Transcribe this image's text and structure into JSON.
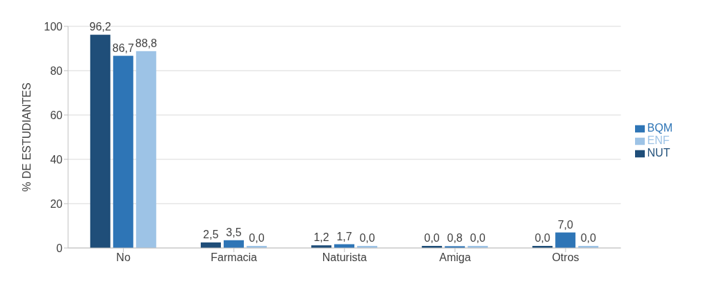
{
  "chart_data": {
    "type": "bar",
    "ylabel": "% DE ESTUDIANTES",
    "categories": [
      "No",
      "Farmacia",
      "Naturista",
      "Amiga",
      "Otros"
    ],
    "series": [
      {
        "name": "NUT",
        "color": "#1f4e79",
        "values": [
          96.2,
          2.5,
          1.2,
          0.0,
          0.0
        ],
        "value_labels": [
          "96,2",
          "2,5",
          "1,2",
          "0,0",
          "0,0"
        ]
      },
      {
        "name": "BQM",
        "color": "#2e75b6",
        "values": [
          86.7,
          3.5,
          1.7,
          0.8,
          7.0
        ],
        "value_labels": [
          "86,7",
          "3,5",
          "1,7",
          "0,8",
          "7,0"
        ]
      },
      {
        "name": "ENF",
        "color": "#9dc3e6",
        "values": [
          88.8,
          0.0,
          0.0,
          0.0,
          0.0
        ],
        "value_labels": [
          "88,8",
          "0,0",
          "0,0",
          "0,0",
          "0,0"
        ]
      }
    ],
    "ylim": [
      0,
      100
    ],
    "yticks": [
      0,
      20,
      40,
      60,
      80,
      100
    ],
    "grid": "y",
    "legend": "right"
  }
}
